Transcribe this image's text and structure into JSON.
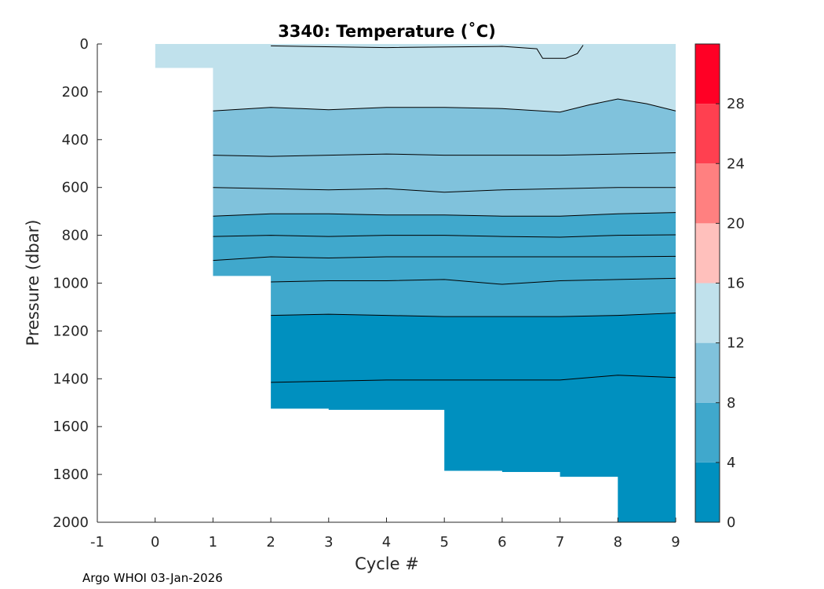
{
  "footer": "Argo WHOI 03-Jan-2026",
  "chart_data": {
    "type": "heatmap",
    "title": "3340:  Temperature (˚C)",
    "xlabel": "Cycle #",
    "ylabel": "Pressure (dbar)",
    "xlim": [
      -1,
      9
    ],
    "ylim": [
      2000,
      0
    ],
    "y_reversed": true,
    "xticks": [
      -1,
      0,
      1,
      2,
      3,
      4,
      5,
      6,
      7,
      8,
      9
    ],
    "yticks": [
      0,
      200,
      400,
      600,
      800,
      1000,
      1200,
      1400,
      1600,
      1800,
      2000
    ],
    "colorbar": {
      "ticks": [
        0,
        4,
        8,
        12,
        16,
        20,
        24,
        28
      ],
      "range": [
        0,
        32
      ],
      "bands": [
        {
          "from": 0,
          "to": 4,
          "color": "#0090BF"
        },
        {
          "from": 4,
          "to": 8,
          "color": "#40A8CC"
        },
        {
          "from": 8,
          "to": 12,
          "color": "#80C2DC"
        },
        {
          "from": 12,
          "to": 16,
          "color": "#C0E1EC"
        },
        {
          "from": 16,
          "to": 20,
          "color": "#FFC0BC"
        },
        {
          "from": 20,
          "to": 24,
          "color": "#FF8080"
        },
        {
          "from": 24,
          "to": 28,
          "color": "#FF4050"
        },
        {
          "from": 28,
          "to": 32,
          "color": "#FF0025"
        }
      ]
    },
    "profile_bottoms": [
      {
        "x": 0,
        "p": 100
      },
      {
        "x": 1,
        "p": 970
      },
      {
        "x": 2,
        "p": 1525
      },
      {
        "x": 3,
        "p": 1530
      },
      {
        "x": 4,
        "p": 1530
      },
      {
        "x": 5,
        "p": 1785
      },
      {
        "x": 6,
        "p": 1790
      },
      {
        "x": 7,
        "p": 1810
      },
      {
        "x": 8,
        "p": 2000
      },
      {
        "x": 9,
        "p": 2000
      }
    ],
    "layers": [
      {
        "color": "#C0E1EC",
        "boundary": [
          [
            1,
            280
          ],
          [
            2,
            265
          ],
          [
            3,
            275
          ],
          [
            4,
            265
          ],
          [
            5,
            265
          ],
          [
            6,
            270
          ],
          [
            7,
            285
          ],
          [
            7.5,
            255
          ],
          [
            8,
            230
          ],
          [
            8.5,
            250
          ],
          [
            9,
            280
          ]
        ]
      },
      {
        "color": "#80C2DC",
        "boundary": [
          [
            1,
            720
          ],
          [
            2,
            710
          ],
          [
            3,
            710
          ],
          [
            4,
            715
          ],
          [
            5,
            715
          ],
          [
            6,
            720
          ],
          [
            7,
            720
          ],
          [
            8,
            710
          ],
          [
            9,
            705
          ]
        ]
      },
      {
        "color": "#40A8CC",
        "boundary": [
          [
            2,
            1135
          ],
          [
            3,
            1130
          ],
          [
            4,
            1135
          ],
          [
            5,
            1140
          ],
          [
            6,
            1140
          ],
          [
            7,
            1140
          ],
          [
            8,
            1135
          ],
          [
            9,
            1125
          ]
        ]
      },
      {
        "color": "#0090BF",
        "boundary": []
      }
    ],
    "contours": [
      {
        "level": 11,
        "points": [
          [
            1,
            465
          ],
          [
            2,
            470
          ],
          [
            3,
            465
          ],
          [
            4,
            460
          ],
          [
            5,
            465
          ],
          [
            6,
            465
          ],
          [
            7,
            465
          ],
          [
            8,
            460
          ],
          [
            9,
            455
          ]
        ]
      },
      {
        "level": 10,
        "points": [
          [
            1,
            600
          ],
          [
            2,
            605
          ],
          [
            3,
            610
          ],
          [
            4,
            605
          ],
          [
            5,
            620
          ],
          [
            6,
            610
          ],
          [
            7,
            605
          ],
          [
            8,
            600
          ],
          [
            9,
            600
          ]
        ]
      },
      {
        "level": 7,
        "points": [
          [
            1,
            805
          ],
          [
            2,
            800
          ],
          [
            3,
            805
          ],
          [
            4,
            800
          ],
          [
            5,
            800
          ],
          [
            6,
            805
          ],
          [
            7,
            808
          ],
          [
            8,
            800
          ],
          [
            9,
            798
          ]
        ]
      },
      {
        "level": 6,
        "points": [
          [
            1,
            905
          ],
          [
            2,
            890
          ],
          [
            3,
            895
          ],
          [
            4,
            890
          ],
          [
            5,
            890
          ],
          [
            6,
            890
          ],
          [
            7,
            890
          ],
          [
            8,
            890
          ],
          [
            9,
            888
          ]
        ]
      },
      {
        "level": 5,
        "points": [
          [
            2,
            995
          ],
          [
            3,
            990
          ],
          [
            4,
            990
          ],
          [
            5,
            985
          ],
          [
            6,
            1005
          ],
          [
            7,
            990
          ],
          [
            8,
            985
          ],
          [
            9,
            980
          ]
        ]
      },
      {
        "level": 3,
        "points": [
          [
            2,
            1415
          ],
          [
            3,
            1410
          ],
          [
            4,
            1405
          ],
          [
            5,
            1405
          ],
          [
            6,
            1405
          ],
          [
            7,
            1405
          ],
          [
            8,
            1385
          ],
          [
            9,
            1395
          ]
        ]
      }
    ]
  }
}
